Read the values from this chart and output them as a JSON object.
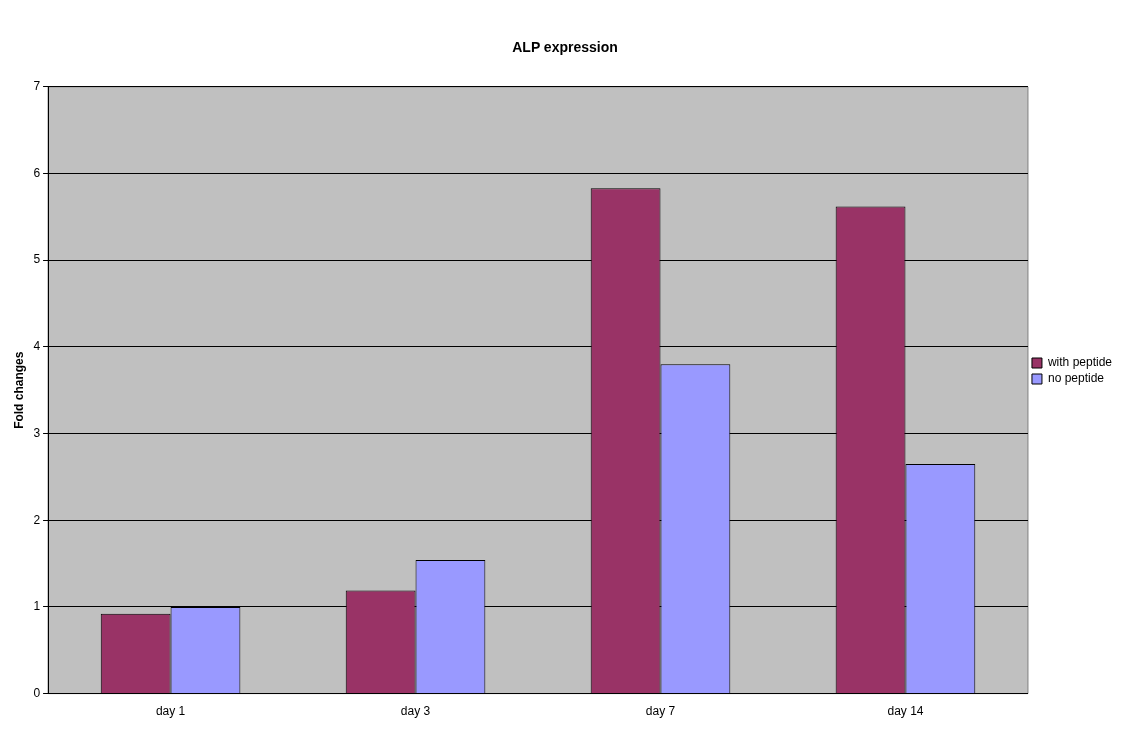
{
  "chart_data": {
    "type": "bar",
    "title": "ALP expression",
    "ylabel": "Fold changes",
    "categories": [
      "day 1",
      "day 3",
      "day 7",
      "day 14"
    ],
    "series": [
      {
        "name": "with peptide",
        "color": "#993366",
        "values": [
          0.92,
          1.19,
          5.83,
          5.62
        ]
      },
      {
        "name": "no peptide",
        "color": "#9999ff",
        "values": [
          1.0,
          1.54,
          3.8,
          2.65
        ]
      }
    ],
    "ylim": [
      0,
      7
    ],
    "yticks": [
      0,
      1,
      2,
      3,
      4,
      5,
      6,
      7
    ],
    "grid": "y",
    "legend": "right"
  }
}
